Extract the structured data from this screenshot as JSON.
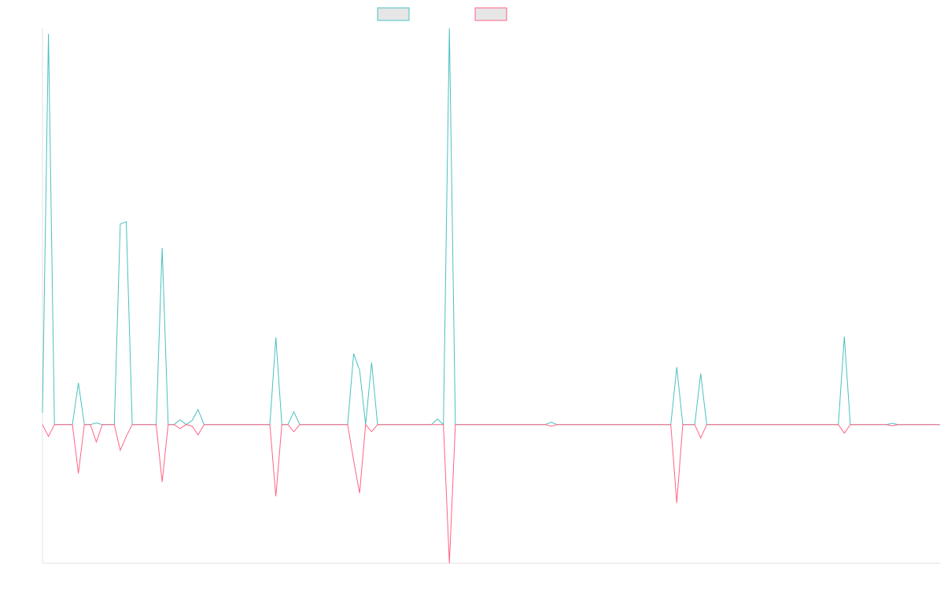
{
  "chart_data": {
    "type": "line",
    "ylim": [
      -35,
      100
    ],
    "series": [
      {
        "color": "#4bc0c0",
        "values": [
          3,
          98.6,
          0,
          0,
          0,
          0,
          10.5,
          0,
          0,
          0.4,
          0,
          0,
          0,
          50.6,
          51.2,
          0,
          0,
          0,
          0,
          0,
          44.6,
          0,
          0,
          1.2,
          0,
          1,
          3.8,
          0,
          0,
          0,
          0,
          0,
          0,
          0,
          0,
          0,
          0,
          0,
          0,
          22,
          0,
          0,
          3.2,
          0,
          0,
          0,
          0,
          0,
          0,
          0,
          0,
          0,
          17.9,
          13.7,
          0,
          15.7,
          0,
          0,
          0,
          0,
          0,
          0,
          0,
          0,
          0,
          0,
          1.4,
          0,
          100,
          0,
          0,
          0,
          0,
          0,
          0,
          0,
          0,
          0,
          0,
          0,
          0,
          0,
          0,
          0,
          0,
          0.6,
          0,
          0,
          0,
          0,
          0,
          0,
          0,
          0,
          0,
          0,
          0,
          0,
          0,
          0,
          0,
          0,
          0,
          0,
          0,
          0,
          14.5,
          0,
          0,
          0,
          12.9,
          0,
          0,
          0,
          0,
          0,
          0,
          0,
          0,
          0,
          0,
          0,
          0,
          0,
          0,
          0,
          0,
          0,
          0,
          0,
          0,
          0,
          0,
          0,
          22.2,
          0,
          0,
          0,
          0,
          0,
          0,
          0,
          0.3,
          0,
          0,
          0,
          0,
          0,
          0,
          0,
          0
        ]
      },
      {
        "color": "#ff6384",
        "values": [
          0,
          -3,
          0,
          0,
          0,
          0,
          -12.3,
          0,
          0,
          -4.4,
          0,
          0,
          0,
          -6.5,
          -3,
          0,
          0,
          0,
          0,
          0,
          -14.5,
          0,
          0,
          -1,
          0,
          -0.4,
          -2.6,
          0,
          0,
          0,
          0,
          0,
          0,
          0,
          0,
          0,
          0,
          0,
          0,
          -18.1,
          0,
          0,
          -1.8,
          0,
          0,
          0,
          0,
          0,
          0,
          0,
          0,
          0,
          -9.1,
          -17.3,
          0,
          -1.8,
          0,
          0,
          0,
          0,
          0,
          0,
          0,
          0,
          0,
          0,
          0,
          0,
          -35,
          0,
          0,
          0,
          0,
          0,
          0,
          0,
          0,
          0,
          0,
          0,
          0,
          0,
          0,
          0,
          0,
          -0.4,
          0,
          0,
          0,
          0,
          0,
          0,
          0,
          0,
          0,
          0,
          0,
          0,
          0,
          0,
          0,
          0,
          0,
          0,
          0,
          0,
          -19.8,
          0,
          0,
          0,
          -3.4,
          0,
          0,
          0,
          0,
          0,
          0,
          0,
          0,
          0,
          0,
          0,
          0,
          0,
          0,
          0,
          0,
          0,
          0,
          0,
          0,
          0,
          0,
          0,
          -2.2,
          0,
          0,
          0,
          0,
          0,
          0,
          0,
          -0.3,
          0,
          0,
          0,
          0,
          0,
          0,
          0,
          0
        ]
      }
    ]
  }
}
